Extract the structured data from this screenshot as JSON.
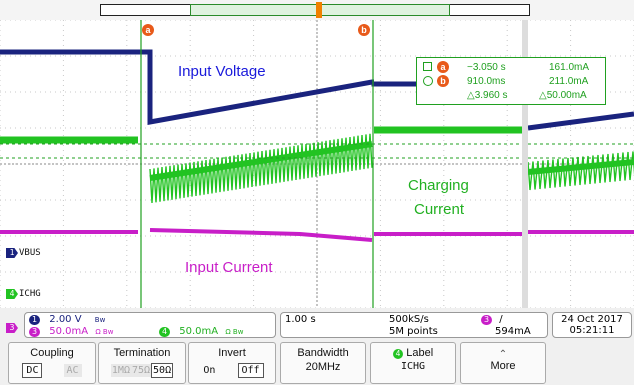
{
  "colors": {
    "ch1": "#1a237e",
    "ch3": "#c81ec8",
    "ch4": "#22c322",
    "cursor": "#20a020",
    "badge": "#e85a1a"
  },
  "cursors": {
    "a": "a",
    "b": "b"
  },
  "labels": {
    "input_voltage": "Input Voltage",
    "input_current": "Input Current",
    "charging_current_1": "Charging",
    "charging_current_2": "Current"
  },
  "channel_tags": {
    "vbus": {
      "num": "1",
      "name": "VBUS"
    },
    "ichg": {
      "num": "4",
      "name": "ICHG"
    },
    "ch3": {
      "num": "3"
    }
  },
  "readout": {
    "a_time": "−3.050 s",
    "a_value": "161.0mA",
    "b_time": "910.0ms",
    "b_value": "211.0mA",
    "delta_time": "△3.960 s",
    "delta_value": "△50.00mA"
  },
  "info": {
    "ch1_num": "1",
    "ch1_scale": "2.00 V",
    "ch1_bw": "Bw",
    "ch3_num": "3",
    "ch3_scale": "50.0mA",
    "ch3_flags": "Ω Bw",
    "ch4_num": "4",
    "ch4_scale": "50.0mA",
    "ch4_flags": "Ω Bw",
    "timebase": "1.00 s",
    "sample_rate": "500kS/s",
    "points": "5M points",
    "trig_ch": "3",
    "trig_slope": "/",
    "trig_level": "594mA",
    "date": "24 Oct 2017",
    "time": "05:21:11"
  },
  "menu": {
    "coupling": {
      "title": "Coupling",
      "dc": "DC",
      "ac": "AC"
    },
    "termination": {
      "title": "Termination",
      "r1": "1MΩ",
      "r2": "75Ω",
      "r3": "50Ω"
    },
    "invert": {
      "title": "Invert",
      "on": "On",
      "off": "Off"
    },
    "bandwidth": {
      "title": "Bandwidth",
      "value": "20MHz"
    },
    "label": {
      "num": "4",
      "title": "Label",
      "value": "ICHG"
    },
    "more": {
      "title": "More"
    }
  }
}
